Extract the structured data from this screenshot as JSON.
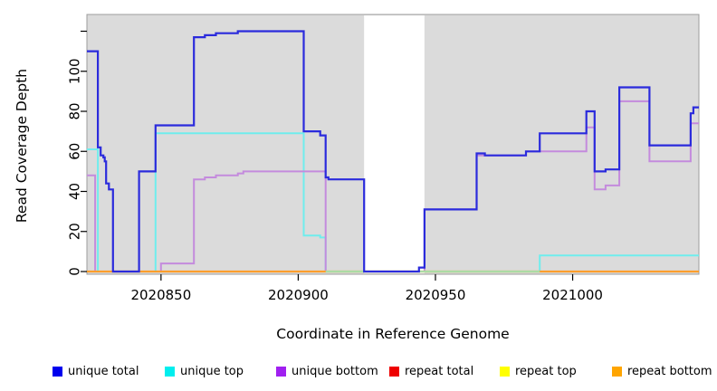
{
  "chart_data": {
    "type": "line",
    "subtype": "step",
    "title": "",
    "xlabel": "Coordinate in Reference Genome",
    "ylabel": "Read Coverage Depth",
    "xlim": [
      2020823,
      2021046
    ],
    "ylim": [
      0,
      120
    ],
    "grid": false,
    "legend_position": "bottom",
    "plot_bg_color": "#DBDBDB",
    "highlight_region": {
      "name": "uncovered-gap",
      "x0": 2020924,
      "x1": 2020946,
      "color": "#FFFFFF"
    },
    "overlap_zero_segment": {
      "note": "pale green bottom segment where unique top and repeat lines overlap at depth 0",
      "x0": 2020910,
      "x1": 2020988,
      "y": 0,
      "color": "#ABDBA4"
    },
    "xticks": {
      "values": [
        2020850,
        2020900,
        2020950,
        2021000
      ],
      "labels": [
        "2020850",
        "2020900",
        "2020950",
        "2021000"
      ]
    },
    "yticks": {
      "values": [
        0,
        20,
        40,
        60,
        80,
        100,
        120
      ],
      "labels": [
        "0",
        "20",
        "40",
        "60",
        "80",
        "100",
        ""
      ]
    },
    "series": [
      {
        "key": "unique_total",
        "label": "unique total",
        "legend_color": "#0000EE",
        "line_color": "#2B2BDC",
        "line_width": 2.2,
        "z": 7,
        "points": [
          [
            2020823,
            110
          ],
          [
            2020827,
            62
          ],
          [
            2020828,
            58
          ],
          [
            2020829,
            57
          ],
          [
            2020829.5,
            55
          ],
          [
            2020830,
            44
          ],
          [
            2020831,
            41
          ],
          [
            2020832.5,
            0
          ],
          [
            2020842,
            50
          ],
          [
            2020848,
            73
          ],
          [
            2020862,
            117
          ],
          [
            2020866,
            118
          ],
          [
            2020870,
            119
          ],
          [
            2020878,
            120
          ],
          [
            2020902,
            70
          ],
          [
            2020908,
            68
          ],
          [
            2020910,
            47
          ],
          [
            2020911,
            46
          ],
          [
            2020924,
            0
          ],
          [
            2020944,
            2
          ],
          [
            2020946,
            31
          ],
          [
            2020965,
            59
          ],
          [
            2020968,
            58
          ],
          [
            2020983,
            60
          ],
          [
            2020988,
            69
          ],
          [
            2021005,
            80
          ],
          [
            2021008,
            50
          ],
          [
            2021012,
            51
          ],
          [
            2021017,
            92
          ],
          [
            2021028,
            63
          ],
          [
            2021043,
            79
          ],
          [
            2021044,
            82
          ],
          [
            2021046,
            82
          ]
        ]
      },
      {
        "key": "unique_top",
        "label": "unique top",
        "legend_color": "#00EEEE",
        "line_color": "#6FEDED",
        "line_width": 2,
        "z": 3,
        "points": [
          [
            2020823,
            61
          ],
          [
            2020827,
            0
          ],
          [
            2020848,
            69
          ],
          [
            2020902,
            18
          ],
          [
            2020908,
            17
          ],
          [
            2020910,
            0
          ],
          [
            2020988,
            8
          ],
          [
            2021046,
            8
          ]
        ]
      },
      {
        "key": "unique_bottom",
        "label": "unique bottom",
        "legend_color": "#A020F0",
        "line_color": "#C48BDD",
        "line_width": 2,
        "z": 3.5,
        "points": [
          [
            2020823,
            48
          ],
          [
            2020826,
            0
          ],
          [
            2020850,
            4
          ],
          [
            2020862,
            46
          ],
          [
            2020866,
            47
          ],
          [
            2020870,
            48
          ],
          [
            2020878,
            49
          ],
          [
            2020880,
            50
          ],
          [
            2020910,
            0
          ],
          [
            2020946,
            31
          ],
          [
            2020965,
            58
          ],
          [
            2020983,
            60
          ],
          [
            2021005,
            72
          ],
          [
            2021008,
            41
          ],
          [
            2021012,
            43
          ],
          [
            2021017,
            85
          ],
          [
            2021028,
            55
          ],
          [
            2021043,
            74
          ],
          [
            2021046,
            74
          ]
        ]
      },
      {
        "key": "repeat_total",
        "label": "repeat total",
        "legend_color": "#EE0000",
        "line_color": "#D33A3A",
        "line_width": 1.6,
        "z": 1,
        "points": [
          [
            2020823,
            0
          ],
          [
            2021046,
            0
          ]
        ]
      },
      {
        "key": "repeat_top",
        "label": "repeat top",
        "legend_color": "#FFFF00",
        "line_color": "#EDE23C",
        "line_width": 1.6,
        "z": 2,
        "points": [
          [
            2020823,
            0
          ],
          [
            2021046,
            0
          ]
        ]
      },
      {
        "key": "repeat_bottom",
        "label": "repeat bottom",
        "legend_color": "#FFA500",
        "line_color": "#FF9E2C",
        "line_width": 2.2,
        "z": 4,
        "points": [
          [
            2020823,
            0
          ],
          [
            2021046,
            0
          ]
        ]
      }
    ]
  }
}
